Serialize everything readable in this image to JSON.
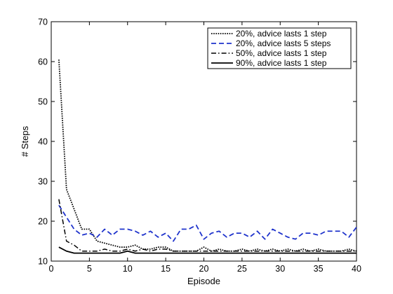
{
  "chart_data": {
    "type": "line",
    "title": "",
    "xlabel": "Episode",
    "ylabel": "# Steps",
    "xlim": [
      0,
      40
    ],
    "ylim": [
      10,
      70
    ],
    "xticks": [
      0,
      5,
      10,
      15,
      20,
      25,
      30,
      35,
      40
    ],
    "yticks": [
      10,
      20,
      30,
      40,
      50,
      60,
      70
    ],
    "grid": false,
    "legend_position": "top-right",
    "x": [
      1,
      2,
      3,
      4,
      5,
      6,
      7,
      8,
      9,
      10,
      11,
      12,
      13,
      14,
      15,
      16,
      17,
      18,
      19,
      20,
      21,
      22,
      23,
      24,
      25,
      26,
      27,
      28,
      29,
      30,
      31,
      32,
      33,
      34,
      35,
      36,
      37,
      38,
      39,
      40
    ],
    "series": [
      {
        "name": "20%, advice lasts 1 step",
        "style": "dotted",
        "color": "#000000",
        "values": [
          60.5,
          28,
          23,
          18,
          18,
          15,
          14.5,
          14,
          13.5,
          13.5,
          14,
          13,
          13,
          13.5,
          13.5,
          12.5,
          12.5,
          12.5,
          12.5,
          13.5,
          12.5,
          13,
          12.5,
          12.5,
          13,
          12.5,
          13,
          12.5,
          13,
          12.5,
          13,
          12.5,
          13,
          12.5,
          13,
          12.5,
          12.5,
          12.5,
          13,
          12.5
        ]
      },
      {
        "name": "20%, advice lasts 5 steps",
        "style": "dashed",
        "color": "#1f33cc",
        "values": [
          24,
          21,
          18,
          16.5,
          17,
          16,
          18,
          16.5,
          18,
          18,
          17.5,
          16.5,
          17.5,
          16,
          17,
          15,
          18,
          18,
          19,
          15.5,
          17,
          17.5,
          16,
          17,
          17,
          16,
          17.5,
          15.5,
          18,
          17,
          16,
          15.5,
          17,
          17,
          16.5,
          17.5,
          17.5,
          17.5,
          16,
          18.5
        ]
      },
      {
        "name": "50%, advice lasts 1 step",
        "style": "dashdot",
        "color": "#000000",
        "values": [
          25.5,
          15,
          14,
          12.5,
          12.5,
          12.5,
          13,
          12.5,
          12.5,
          13,
          12.5,
          13,
          12.5,
          13,
          13,
          12.5,
          12.5,
          12.5,
          12.5,
          12.5,
          12.5,
          12.5,
          12.5,
          12.5,
          12.5,
          12.5,
          12.5,
          12.5,
          12.5,
          12.5,
          12.5,
          12.5,
          12.5,
          12.5,
          12.5,
          12.5,
          12.5,
          12.5,
          12.5,
          12.5
        ]
      },
      {
        "name": "90%, advice lasts 1 step",
        "style": "solid",
        "color": "#000000",
        "values": [
          13.5,
          12.5,
          12,
          12,
          12,
          12,
          12,
          12,
          12,
          12.5,
          12,
          12,
          12,
          12,
          12,
          12,
          12,
          12,
          12,
          12,
          12,
          12,
          12,
          12,
          12,
          12,
          12,
          12,
          12,
          12,
          12,
          12,
          12,
          12,
          12,
          12,
          12,
          12,
          12,
          12
        ]
      }
    ]
  }
}
